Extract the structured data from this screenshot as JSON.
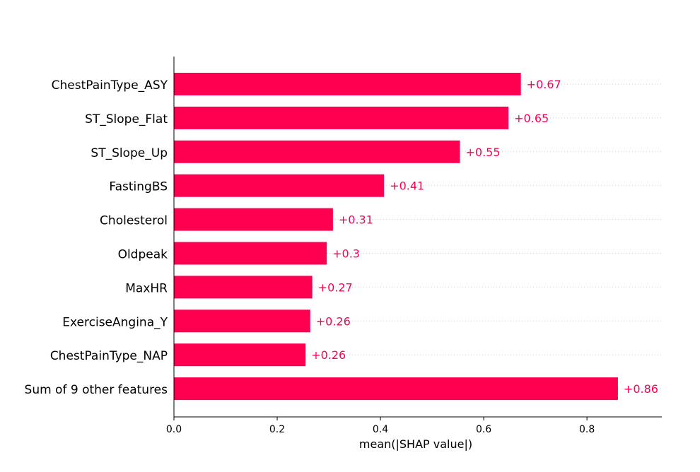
{
  "chart_data": {
    "type": "bar",
    "orientation": "horizontal",
    "categories": [
      "ChestPainType_ASY",
      "ST_Slope_Flat",
      "ST_Slope_Up",
      "FastingBS",
      "Cholesterol",
      "Oldpeak",
      "MaxHR",
      "ExerciseAngina_Y",
      "ChestPainType_NAP",
      "Sum of 9 other features"
    ],
    "values": [
      0.672,
      0.648,
      0.554,
      0.407,
      0.308,
      0.296,
      0.268,
      0.264,
      0.255,
      0.86
    ],
    "value_labels": [
      "+0.67",
      "+0.65",
      "+0.55",
      "+0.41",
      "+0.31",
      "+0.3",
      "+0.27",
      "+0.26",
      "+0.26",
      "+0.86"
    ],
    "xlabel": "mean(|SHAP value|)",
    "ylabel": "",
    "title": "",
    "xlim": [
      0.0,
      0.945
    ],
    "xticks": [
      0.0,
      0.2,
      0.4,
      0.6,
      0.8
    ],
    "xtick_labels": [
      "0.0",
      "0.2",
      "0.4",
      "0.6",
      "0.8"
    ],
    "grid": "dotted horizontal guide lines per row",
    "legend": "none",
    "bar_color": "#ff0051",
    "label_color": "#ff0051",
    "guide_color": "#cccccc"
  }
}
